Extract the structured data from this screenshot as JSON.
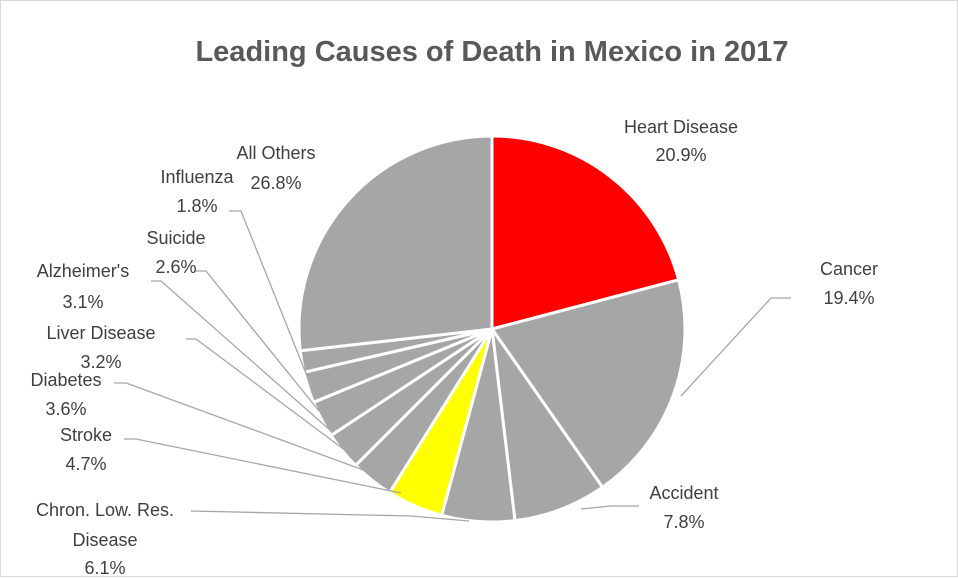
{
  "chart_data": {
    "type": "pie",
    "title": "Leading Causes of Death in Mexico in 2017",
    "slices": [
      {
        "name": "Heart Disease",
        "value": 20.9,
        "label": "20.9%",
        "color": "#ff0000"
      },
      {
        "name": "Cancer",
        "value": 19.4,
        "label": "19.4%",
        "color": "#a6a6a6"
      },
      {
        "name": "Accident",
        "value": 7.8,
        "label": "7.8%",
        "color": "#a6a6a6"
      },
      {
        "name": "Chron. Low. Res. Disease",
        "value": 6.1,
        "label": "6.1%",
        "color": "#a6a6a6"
      },
      {
        "name": "Stroke",
        "value": 4.7,
        "label": "4.7%",
        "color": "#ffff00"
      },
      {
        "name": "Diabetes",
        "value": 3.6,
        "label": "3.6%",
        "color": "#a6a6a6"
      },
      {
        "name": "Liver Disease",
        "value": 3.2,
        "label": "3.2%",
        "color": "#a6a6a6"
      },
      {
        "name": "Alzheimer's",
        "value": 3.1,
        "label": "3.1%",
        "color": "#a6a6a6"
      },
      {
        "name": "Suicide",
        "value": 2.6,
        "label": "2.6%",
        "color": "#a6a6a6"
      },
      {
        "name": "Influenza",
        "value": 1.8,
        "label": "1.8%",
        "color": "#a6a6a6"
      },
      {
        "name": "All Others",
        "value": 26.8,
        "label": "26.8%",
        "color": "#a6a6a6"
      }
    ]
  }
}
